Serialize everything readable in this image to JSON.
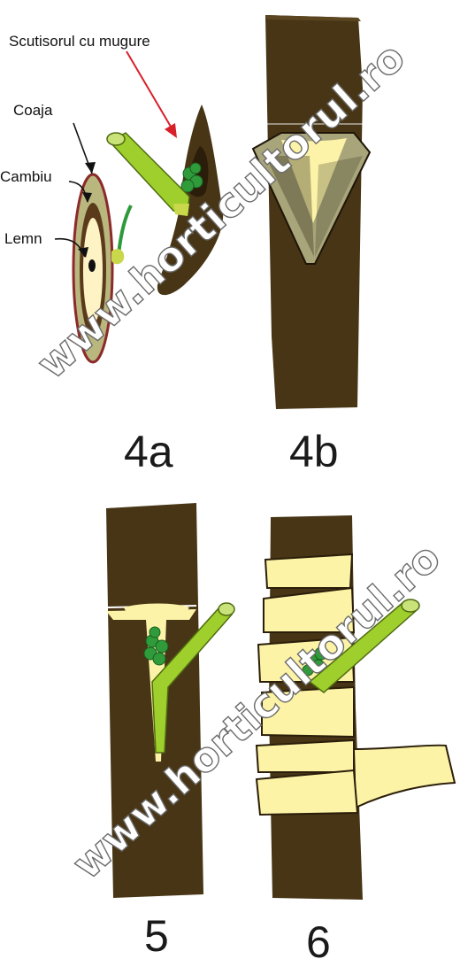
{
  "labels": {
    "scutisor": "Scutisorul cu mugure",
    "coaja": "Coaja",
    "cambiu": "Cambiu",
    "lemn": "Lemn"
  },
  "figures": {
    "fig_4a": "4a",
    "fig_4b": "4b",
    "fig_5": "5",
    "fig_6": "6"
  },
  "watermarks": {
    "top": "www.horticultorul.ro",
    "bottom": "www.horticultorul.ro"
  },
  "colors": {
    "bark": "#473515",
    "wood": "#fdf3a8",
    "cambium": "#b9b77e",
    "twig_green": "#9fcf2c",
    "bud_green": "#2f9b3a",
    "wrap_tape": "#fcf3a6",
    "rind_outline": "#8b2b2b",
    "arrow_red": "#d8202a"
  }
}
